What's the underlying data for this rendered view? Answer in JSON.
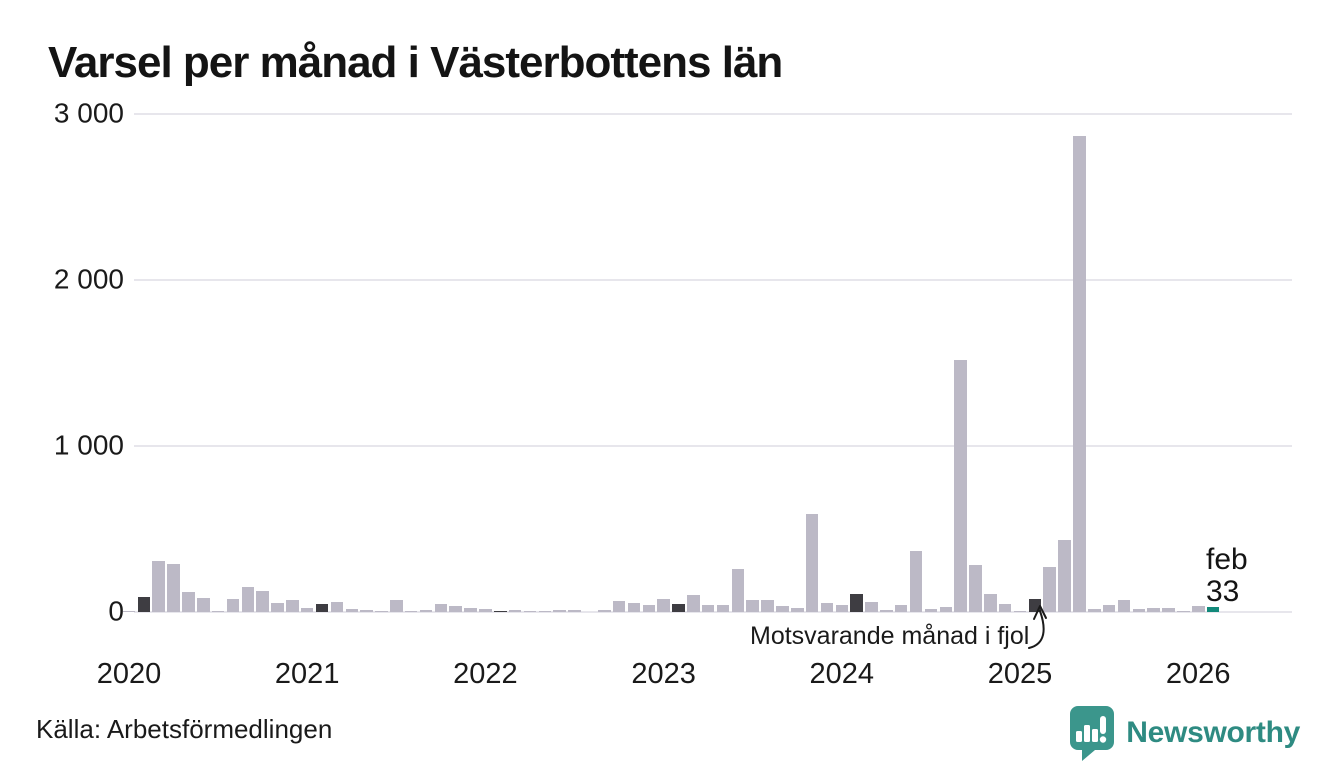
{
  "colors": {
    "bar": "#bcb9c6",
    "bar_dark": "#3e3d42",
    "bar_accent": "#12897a",
    "grid": "#e7e6ec",
    "text": "#1a1a1a",
    "brand_teal": "#3b968c",
    "brand_text_teal": "#2e8b82"
  },
  "footer_brand": "Newsworthy",
  "chart_data": {
    "type": "bar",
    "title": "Varsel per månad i Västerbottens län",
    "source": "Källa: Arbetsförmedlingen",
    "xlabel": "",
    "ylabel": "",
    "ylim": [
      0,
      3000
    ],
    "grid": true,
    "yticks": [
      {
        "value": 3000,
        "label": "3 000"
      },
      {
        "value": 2000,
        "label": "2 000"
      },
      {
        "value": 1000,
        "label": "1 000"
      },
      {
        "value": 0,
        "label": "0"
      }
    ],
    "year_labels": [
      "2020",
      "2021",
      "2022",
      "2023",
      "2024",
      "2025",
      "2026"
    ],
    "highlight_rule": "february bars dark gray; latest month (feb 2026) teal",
    "annotation": {
      "text": "Motsvarande månad i fjol",
      "target_month": "2025-02"
    },
    "last_point": {
      "month_label": "feb",
      "value": 33
    },
    "months": [
      "2020-01",
      "2020-02",
      "2020-03",
      "2020-04",
      "2020-05",
      "2020-06",
      "2020-07",
      "2020-08",
      "2020-09",
      "2020-10",
      "2020-11",
      "2020-12",
      "2021-01",
      "2021-02",
      "2021-03",
      "2021-04",
      "2021-05",
      "2021-06",
      "2021-07",
      "2021-08",
      "2021-09",
      "2021-10",
      "2021-11",
      "2021-12",
      "2022-01",
      "2022-02",
      "2022-03",
      "2022-04",
      "2022-05",
      "2022-06",
      "2022-07",
      "2022-08",
      "2022-09",
      "2022-10",
      "2022-11",
      "2022-12",
      "2023-01",
      "2023-02",
      "2023-03",
      "2023-04",
      "2023-05",
      "2023-06",
      "2023-07",
      "2023-08",
      "2023-09",
      "2023-10",
      "2023-11",
      "2023-12",
      "2024-01",
      "2024-02",
      "2024-03",
      "2024-04",
      "2024-05",
      "2024-06",
      "2024-07",
      "2024-08",
      "2024-09",
      "2024-10",
      "2024-11",
      "2024-12",
      "2025-01",
      "2025-02",
      "2025-03",
      "2025-04",
      "2025-05",
      "2025-06",
      "2025-07",
      "2025-08",
      "2025-09",
      "2025-10",
      "2025-11",
      "2025-12",
      "2026-01",
      "2026-02"
    ],
    "values": [
      5,
      90,
      305,
      290,
      120,
      85,
      5,
      80,
      150,
      125,
      55,
      70,
      25,
      50,
      60,
      20,
      10,
      5,
      70,
      5,
      10,
      50,
      35,
      25,
      20,
      5,
      15,
      5,
      5,
      12,
      12,
      0,
      12,
      65,
      55,
      42,
      80,
      48,
      105,
      40,
      40,
      260,
      70,
      70,
      35,
      25,
      590,
      55,
      40,
      110,
      60,
      12,
      42,
      370,
      18,
      30,
      1520,
      285,
      110,
      50,
      5,
      80,
      270,
      435,
      2870,
      18,
      40,
      70,
      20,
      25,
      25,
      5,
      35,
      33
    ]
  }
}
